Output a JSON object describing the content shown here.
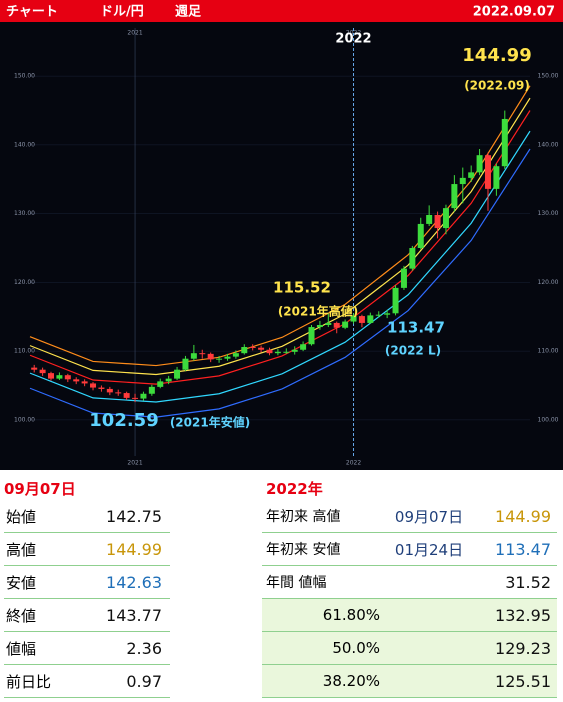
{
  "header": {
    "title": "チャート",
    "pair": "ドル/円",
    "period": "週足",
    "date": "2022.09.07"
  },
  "chart_data": {
    "type": "candlestick",
    "up_color": "#3ddc3d",
    "down_color": "#ff3b3b",
    "xlim": [
      -25,
      94
    ],
    "xticks": [
      {
        "value": 0,
        "label": "2021"
      },
      {
        "value": 52,
        "label": "2022"
      }
    ],
    "ylim": [
      93,
      157
    ],
    "yticks": [
      {
        "value": 100,
        "label": "100.00"
      },
      {
        "value": 110,
        "label": "110.00"
      },
      {
        "value": 120,
        "label": "120.00"
      },
      {
        "value": 130,
        "label": "130.00"
      },
      {
        "value": 140,
        "label": "140.00"
      },
      {
        "value": 150,
        "label": "150.00"
      }
    ],
    "grid": true,
    "x": [
      -24,
      -22,
      -20,
      -18,
      -16,
      -14,
      -12,
      -10,
      -8,
      -6,
      -4,
      -2,
      0,
      2,
      4,
      6,
      8,
      10,
      12,
      14,
      16,
      18,
      20,
      22,
      24,
      26,
      28,
      30,
      32,
      34,
      36,
      38,
      40,
      42,
      44,
      46,
      48,
      50,
      52,
      54,
      56,
      58,
      60,
      62,
      64,
      66,
      68,
      70,
      72,
      74,
      76,
      78,
      80,
      82,
      84,
      86,
      88
    ],
    "ohlc": [
      [
        107.6,
        108.0,
        106.9,
        107.3
      ],
      [
        107.3,
        107.6,
        106.4,
        106.8
      ],
      [
        106.8,
        107.0,
        105.7,
        106.0
      ],
      [
        106.0,
        106.9,
        105.8,
        106.5
      ],
      [
        106.5,
        106.7,
        105.5,
        105.9
      ],
      [
        105.9,
        106.2,
        105.2,
        105.6
      ],
      [
        105.6,
        105.9,
        104.9,
        105.3
      ],
      [
        105.3,
        105.5,
        104.3,
        104.7
      ],
      [
        104.7,
        105.0,
        104.1,
        104.5
      ],
      [
        104.5,
        104.8,
        103.6,
        104.0
      ],
      [
        104.0,
        104.4,
        103.5,
        103.9
      ],
      [
        103.9,
        104.1,
        102.9,
        103.2
      ],
      [
        103.2,
        103.8,
        102.59,
        103.1
      ],
      [
        103.1,
        104.1,
        102.8,
        103.8
      ],
      [
        103.8,
        105.1,
        103.5,
        104.8
      ],
      [
        104.8,
        106.0,
        104.6,
        105.6
      ],
      [
        105.6,
        106.4,
        105.2,
        106.0
      ],
      [
        106.0,
        107.7,
        105.8,
        107.3
      ],
      [
        107.3,
        109.3,
        107.1,
        108.9
      ],
      [
        108.9,
        110.9,
        108.6,
        109.7
      ],
      [
        109.7,
        110.2,
        108.9,
        109.6
      ],
      [
        109.6,
        109.8,
        108.4,
        108.8
      ],
      [
        108.8,
        109.3,
        108.3,
        108.9
      ],
      [
        108.9,
        109.6,
        108.6,
        109.2
      ],
      [
        109.2,
        110.1,
        108.9,
        109.7
      ],
      [
        109.7,
        111.0,
        109.5,
        110.6
      ],
      [
        110.6,
        111.0,
        110.1,
        110.5
      ],
      [
        110.5,
        110.8,
        109.8,
        110.2
      ],
      [
        110.2,
        110.5,
        109.4,
        109.7
      ],
      [
        109.7,
        110.3,
        109.4,
        109.9
      ],
      [
        109.9,
        110.4,
        109.6,
        109.9
      ],
      [
        109.9,
        110.7,
        109.5,
        110.2
      ],
      [
        110.2,
        111.4,
        110.0,
        111.0
      ],
      [
        111.0,
        113.8,
        110.8,
        113.5
      ],
      [
        113.5,
        114.4,
        113.1,
        113.8
      ],
      [
        113.8,
        115.52,
        113.5,
        114.1
      ],
      [
        114.1,
        114.3,
        112.6,
        113.4
      ],
      [
        113.4,
        114.6,
        113.2,
        114.3
      ],
      [
        114.3,
        115.5,
        114.0,
        115.1
      ],
      [
        115.1,
        115.3,
        113.47,
        114.1
      ],
      [
        114.1,
        115.6,
        114.0,
        115.2
      ],
      [
        115.2,
        115.8,
        114.9,
        115.3
      ],
      [
        115.3,
        116.0,
        114.8,
        115.5
      ],
      [
        115.5,
        119.6,
        115.2,
        119.2
      ],
      [
        119.2,
        122.4,
        118.9,
        122.0
      ],
      [
        122.0,
        125.3,
        121.7,
        125.0
      ],
      [
        125.0,
        129.4,
        124.8,
        128.5
      ],
      [
        128.5,
        131.2,
        128.2,
        129.8
      ],
      [
        129.8,
        130.3,
        126.4,
        127.9
      ],
      [
        127.9,
        131.3,
        127.0,
        130.8
      ],
      [
        130.8,
        135.6,
        130.3,
        134.3
      ],
      [
        134.3,
        136.7,
        131.5,
        135.2
      ],
      [
        135.2,
        137.0,
        134.6,
        136.0
      ],
      [
        136.0,
        139.4,
        135.6,
        138.5
      ],
      [
        138.5,
        138.9,
        130.4,
        133.6
      ],
      [
        133.6,
        137.3,
        132.6,
        136.9
      ],
      [
        136.9,
        144.99,
        136.5,
        143.77
      ]
    ],
    "band_x": [
      -25,
      -10,
      5,
      20,
      35,
      50,
      65,
      80,
      94
    ],
    "bands": [
      {
        "color": "#ff8c1a",
        "values": [
          112.1,
          108.5,
          107.9,
          109.1,
          112.0,
          116.8,
          124.0,
          134.8,
          148.6
        ]
      },
      {
        "color": "#ffe34d",
        "values": [
          110.8,
          107.2,
          106.6,
          107.8,
          110.7,
          115.4,
          122.5,
          133.2,
          146.8
        ]
      },
      {
        "color": "#ff2020",
        "values": [
          109.4,
          105.8,
          105.2,
          106.4,
          109.3,
          114.0,
          121.0,
          131.5,
          145.0
        ]
      },
      {
        "color": "#30d8ff",
        "values": [
          106.8,
          103.2,
          102.6,
          103.8,
          106.7,
          111.3,
          118.2,
          128.6,
          142.0
        ]
      },
      {
        "color": "#2f6cff",
        "values": [
          104.6,
          101.0,
          100.4,
          101.6,
          104.5,
          109.1,
          115.9,
          126.1,
          139.4
        ]
      }
    ],
    "annotations": [
      {
        "text": "144.99",
        "note": "(2022.09)",
        "color": "#ffe34d"
      },
      {
        "text": "115.52",
        "note": "(2021年高値)",
        "color": "#ffe34d"
      },
      {
        "text": "113.47",
        "note": "(2022 L)",
        "color": "#5fd3ff"
      },
      {
        "text": "102.59",
        "note": "(2021年安値)",
        "color": "#5fd3ff"
      }
    ]
  },
  "day_table": {
    "title": "09月07日",
    "rows": [
      [
        "始値",
        "142.75"
      ],
      [
        "高値",
        "144.99"
      ],
      [
        "安値",
        "142.63"
      ],
      [
        "終値",
        "143.77"
      ],
      [
        "値幅",
        "2.36"
      ],
      [
        "前日比",
        "0.97"
      ]
    ]
  },
  "year_table": {
    "title": "2022年",
    "rows": [
      [
        "年初来 高値",
        "09月07日",
        "144.99"
      ],
      [
        "年初来 安値",
        "01月24日",
        "113.47"
      ],
      [
        "年間 値幅",
        "",
        "31.52"
      ],
      [
        "61.80%",
        "",
        "132.95"
      ],
      [
        "50.0%",
        "",
        "129.23"
      ],
      [
        "38.20%",
        "",
        "125.51"
      ]
    ]
  }
}
